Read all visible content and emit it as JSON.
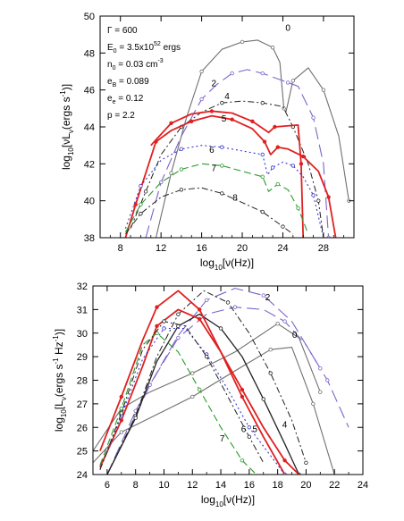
{
  "chart_data": [
    {
      "type": "line",
      "xlabel_base": "log",
      "xlabel_sub": "10",
      "xlabel_rest": "[ν(Hz)]",
      "ylabel_base": "log",
      "ylabel_sub": "10",
      "ylabel_rest1": "[νL",
      "ylabel_sub2": "ν",
      "ylabel_rest2": "(ergs s",
      "ylabel_sup": "-1",
      "ylabel_rest3": ")]",
      "xlim": [
        6,
        31
      ],
      "ylim": [
        38,
        50
      ],
      "xticks": [
        8,
        12,
        16,
        20,
        24,
        28
      ],
      "yticks": [
        38,
        40,
        42,
        44,
        46,
        48,
        50
      ],
      "params": {
        "gamma": "600",
        "energy_coef": "3.5x10",
        "energy_exp": "52",
        "energy_unit": "ergs",
        "density": "0.03 cm",
        "density_exp": "-3",
        "eB": "0.089",
        "ee": "0.12",
        "p": "2.2"
      },
      "series": [
        {
          "name": "0",
          "color": "#707070",
          "dash": "",
          "width": 1.1,
          "x": [
            11.5,
            13,
            14.5,
            16,
            18,
            20,
            21.5,
            23,
            23.7,
            24.1,
            24.3
          ],
          "y": [
            38,
            41.5,
            44.5,
            47.0,
            48.2,
            48.6,
            48.7,
            48.3,
            47.5,
            45,
            44.8
          ]
        },
        {
          "name": "",
          "color": "#707070",
          "dash": "",
          "width": 1.1,
          "x": [
            24.3,
            25,
            26.5,
            28,
            29.5,
            30.5
          ],
          "y": [
            44.8,
            46.5,
            47.2,
            46,
            43.5,
            40
          ]
        },
        {
          "name": "2",
          "color": "#7d63c9",
          "dash": "14,6",
          "width": 1.1,
          "x": [
            10.5,
            12,
            14,
            16,
            17.5,
            19,
            20.5,
            22,
            23,
            24.5,
            25.5,
            27,
            28,
            28.5
          ],
          "y": [
            38,
            41.0,
            43.5,
            45.5,
            46.3,
            46.9,
            47.1,
            46.9,
            46.7,
            46.4,
            46.2,
            44.5,
            42,
            38
          ]
        },
        {
          "name": "4",
          "color": "#222222",
          "dash": "7,3,2,3",
          "width": 1.0,
          "x": [
            9,
            10.5,
            12,
            14,
            16,
            18,
            20,
            22,
            24,
            25,
            26.5,
            27.5,
            28
          ],
          "y": [
            38.5,
            40.5,
            42.5,
            44.0,
            44.8,
            45.3,
            45.4,
            45.3,
            45.1,
            44.0,
            42,
            40,
            38
          ]
        },
        {
          "name": "5",
          "color": "#e02020",
          "dash": "",
          "width": 1.8,
          "x": [
            8.5,
            9.5,
            10.5,
            11.5,
            13,
            15,
            17,
            19,
            21,
            22.2,
            22.8,
            23.5,
            24.5,
            26,
            27.5,
            28.5,
            29.2
          ],
          "y": [
            38,
            39.8,
            41.5,
            43.2,
            43.8,
            44.3,
            44.6,
            44.4,
            43.9,
            43.2,
            42.5,
            42.9,
            42.8,
            42.4,
            41.6,
            40.2,
            38
          ]
        },
        {
          "name": "",
          "color": "#e02020",
          "dash": "",
          "width": 1.8,
          "x": [
            11,
            13,
            15,
            17,
            19,
            21,
            22.6,
            23.2,
            25.5,
            25.8,
            26.0
          ],
          "y": [
            43.0,
            44.2,
            44.7,
            44.85,
            44.75,
            44.3,
            43.7,
            44.0,
            44.1,
            42,
            38
          ]
        },
        {
          "name": "6",
          "color": "#3838cc",
          "dash": "2,3",
          "width": 1.1,
          "x": [
            8.5,
            10,
            12,
            14,
            16,
            18,
            20,
            22,
            22.5,
            23,
            24,
            25,
            26,
            27,
            28
          ],
          "y": [
            38.5,
            40.8,
            42.2,
            42.8,
            43.0,
            42.9,
            42.7,
            42.5,
            41.4,
            41.8,
            42.1,
            41.9,
            41.3,
            40.3,
            38
          ]
        },
        {
          "name": "7",
          "color": "#2a9a2a",
          "dash": "8,4",
          "width": 1.1,
          "x": [
            8.5,
            10,
            12,
            14,
            16,
            18,
            20,
            22,
            22.6,
            23.5,
            24.5,
            25.5,
            26.5
          ],
          "y": [
            38.3,
            39.8,
            41.0,
            41.7,
            42.0,
            41.9,
            41.6,
            41.3,
            40.5,
            40.9,
            40.6,
            39.6,
            38.2
          ]
        },
        {
          "name": "8",
          "color": "#222222",
          "dash": "7,3,2,3",
          "width": 1.0,
          "x": [
            8.5,
            10,
            12,
            14,
            16,
            18,
            20,
            22,
            23,
            24,
            25
          ],
          "y": [
            38.2,
            39.3,
            40.2,
            40.6,
            40.7,
            40.4,
            39.9,
            39.4,
            39.0,
            38.6,
            38.2
          ]
        }
      ],
      "labels": [
        {
          "text": "0",
          "x": 24.5,
          "y": 49.2
        },
        {
          "text": "2",
          "x": 17.2,
          "y": 46.2
        },
        {
          "text": "4",
          "x": 18.5,
          "y": 45.5
        },
        {
          "text": "5",
          "x": 18.2,
          "y": 44.3
        },
        {
          "text": "6",
          "x": 17.0,
          "y": 42.6
        },
        {
          "text": "7",
          "x": 17.2,
          "y": 41.6
        },
        {
          "text": "8",
          "x": 19.3,
          "y": 40.0
        }
      ]
    },
    {
      "type": "line",
      "xlabel_base": "log",
      "xlabel_sub": "10",
      "xlabel_rest": "[ν(Hz)]",
      "ylabel_base": "log",
      "ylabel_sub": "10",
      "ylabel_rest1": "[L",
      "ylabel_sub2": "ν",
      "ylabel_rest2": "(ergs s",
      "ylabel_sup": "-1",
      "ylabel_rest3": " Hz",
      "ylabel_sup2": "-1",
      "ylabel_rest4": ")]",
      "xlim": [
        5,
        24
      ],
      "ylim": [
        24,
        32
      ],
      "xticks": [
        6,
        8,
        10,
        12,
        14,
        16,
        18,
        20,
        22,
        24
      ],
      "yticks": [
        24,
        25,
        26,
        27,
        28,
        29,
        30,
        31,
        32
      ],
      "series": [
        {
          "name": "0",
          "color": "#707070",
          "dash": "",
          "width": 1.1,
          "x": [
            5,
            7,
            9,
            12,
            15,
            17.5,
            19,
            20.5,
            22
          ],
          "y": [
            24.5,
            25.8,
            26.4,
            27.3,
            28.4,
            29.3,
            29.4,
            27.0,
            24
          ]
        },
        {
          "name": "",
          "color": "#707070",
          "dash": "",
          "width": 1.1,
          "x": [
            5,
            7,
            9,
            12,
            15,
            18,
            19.5,
            21
          ],
          "y": [
            25.0,
            26.8,
            27.5,
            28.3,
            29.2,
            30.4,
            29.8,
            27.5
          ]
        },
        {
          "name": "2",
          "color": "#7d63c9",
          "dash": "14,6",
          "width": 1.1,
          "x": [
            6,
            8,
            9.5,
            11,
            13,
            15,
            17,
            18.5,
            20,
            21.5,
            23
          ],
          "y": [
            24,
            26.7,
            28.3,
            29.8,
            30.8,
            31.1,
            31.0,
            30.5,
            29.5,
            28.0,
            26.0
          ]
        },
        {
          "name": "",
          "color": "#7d63c9",
          "dash": "14,6",
          "width": 1.1,
          "x": [
            7,
            9,
            11,
            13,
            15,
            17,
            19,
            21
          ],
          "y": [
            25.2,
            27.8,
            29.9,
            31.4,
            31.9,
            31.6,
            30.5,
            28.5
          ]
        },
        {
          "name": "4",
          "color": "#222222",
          "dash": "7,3,2,3",
          "width": 1.0,
          "x": [
            6,
            8,
            9.5,
            11,
            12.8,
            14.5,
            16,
            17.5,
            19,
            20
          ],
          "y": [
            24,
            26.5,
            29.0,
            30.8,
            31.8,
            31.3,
            30.0,
            28.3,
            26.3,
            24.5
          ]
        },
        {
          "name": "",
          "color": "#222222",
          "dash": "",
          "width": 1.3,
          "x": [
            6,
            8,
            9.5,
            11,
            12.5,
            14,
            15.5,
            17,
            18.5,
            19.5
          ],
          "y": [
            24,
            26.4,
            28.8,
            30.3,
            30.8,
            30.2,
            29.0,
            27.2,
            25.3,
            24
          ]
        },
        {
          "name": "5",
          "color": "#e02020",
          "dash": "",
          "width": 1.8,
          "x": [
            5.5,
            7,
            8.5,
            9.5,
            11,
            12.5,
            14,
            15.5,
            17,
            18.5,
            19.5
          ],
          "y": [
            24.3,
            26.3,
            28.6,
            30.3,
            31.0,
            30.6,
            29.2,
            27.6,
            26.0,
            24.6,
            24
          ]
        },
        {
          "name": "",
          "color": "#e02020",
          "dash": "",
          "width": 1.8,
          "x": [
            5.5,
            7,
            8.5,
            9.5,
            11,
            12.5,
            14,
            15.5,
            17,
            18.5
          ],
          "y": [
            25.0,
            27.3,
            29.7,
            31.1,
            31.8,
            31.0,
            29.2,
            27.3,
            25.6,
            24
          ]
        },
        {
          "name": "6",
          "color": "#3838cc",
          "dash": "2,3",
          "width": 1.1,
          "x": [
            5.5,
            7,
            8.5,
            10,
            11.5,
            13,
            14.5,
            16,
            17.5,
            18.5
          ],
          "y": [
            24.2,
            26.5,
            28.9,
            30.2,
            30.2,
            29.1,
            27.6,
            26.0,
            24.8,
            24
          ]
        },
        {
          "name": "7",
          "color": "#2a9a2a",
          "dash": "8,4",
          "width": 1.1,
          "x": [
            5.5,
            7,
            8.5,
            9.5,
            11,
            12.5,
            14,
            15.5,
            16.5
          ],
          "y": [
            24.4,
            26.8,
            29.5,
            30.0,
            29.2,
            27.6,
            26.0,
            24.6,
            24
          ]
        },
        {
          "name": "8",
          "color": "#222222",
          "dash": "7,3,2,3",
          "width": 1.0,
          "x": [
            5.5,
            7,
            8.5,
            10,
            11.5,
            13,
            14.5,
            16,
            17
          ],
          "y": [
            24.2,
            26.6,
            29.3,
            30.5,
            30.3,
            29.0,
            27.3,
            25.6,
            24.5
          ]
        }
      ],
      "labels": [
        {
          "text": "2",
          "x": 17.3,
          "y": 31.4
        },
        {
          "text": "0",
          "x": 19.2,
          "y": 29.8
        },
        {
          "text": "4",
          "x": 18.5,
          "y": 26.0
        },
        {
          "text": "5",
          "x": 16.4,
          "y": 25.8
        },
        {
          "text": "6",
          "x": 15.6,
          "y": 25.8
        },
        {
          "text": "7",
          "x": 14.1,
          "y": 25.4
        }
      ]
    }
  ]
}
